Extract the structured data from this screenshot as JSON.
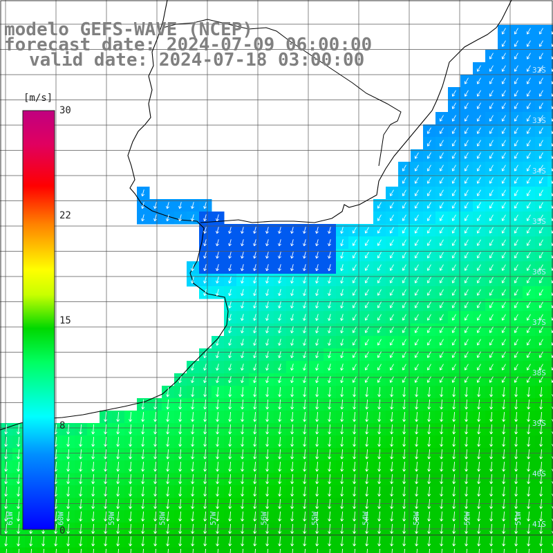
{
  "title": {
    "line1": "modelo GEFS-WAVE (NCEP)",
    "line2": "forecast date: 2024-07-09 06:00:00",
    "line3": "valid date: 2024-07-18 03:00:00"
  },
  "colorbar": {
    "unit": "[m/s]",
    "min": 0,
    "max": 30,
    "ticks": [
      30,
      22,
      15,
      8,
      0
    ]
  },
  "lat_labels": [
    "32S",
    "33S",
    "34S",
    "35S",
    "36S",
    "37S",
    "38S",
    "39S",
    "40S",
    "41S"
  ],
  "lon_labels": [
    "61W",
    "60W",
    "59W",
    "58W",
    "57W",
    "56W",
    "55W",
    "54W",
    "53W",
    "52W",
    "51W"
  ],
  "colors": {
    "land": "#ffffff",
    "coast": "#000000",
    "grid": "#555555",
    "arrows": "#ffffff",
    "title": "#808080"
  },
  "map_icons": [
    "wind-arrow-icon"
  ]
}
